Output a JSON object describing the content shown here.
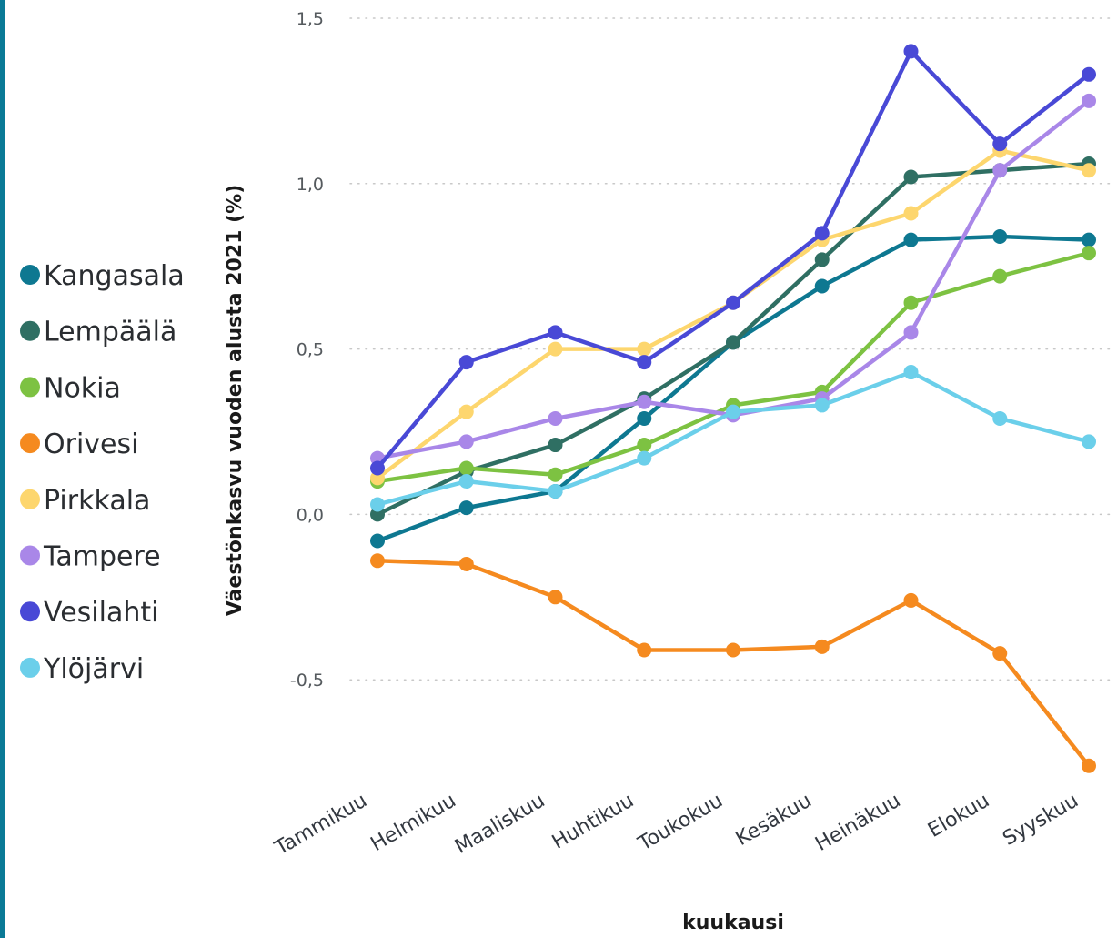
{
  "chart_data": {
    "type": "line",
    "title": "",
    "xlabel": "kuukausi",
    "ylabel": "Väestönkasvu vuoden alusta 2021 (%)",
    "categories": [
      "Tammikuu",
      "Helmikuu",
      "Maaliskuu",
      "Huhtikuu",
      "Toukokuu",
      "Kesäkuu",
      "Heinäkuu",
      "Elokuu",
      "Syyskuu"
    ],
    "ylim": [
      -0.85,
      1.55
    ],
    "yticks": [
      1.5,
      1.0,
      0.5,
      0.0,
      -0.5
    ],
    "ytick_labels": [
      "1,5",
      "1,0",
      "0,5",
      "0,0",
      "-0,5"
    ],
    "grid": "horizontal dotted",
    "legend_position": "left",
    "series": [
      {
        "name": "Kangasala",
        "color": "#0e7891",
        "values": [
          -0.08,
          0.02,
          0.07,
          0.29,
          0.52,
          0.69,
          0.83,
          0.84,
          0.83
        ]
      },
      {
        "name": "Lempäälä",
        "color": "#2f6f63",
        "values": [
          0.0,
          0.13,
          0.21,
          0.35,
          0.52,
          0.77,
          1.02,
          1.04,
          1.06
        ]
      },
      {
        "name": "Nokia",
        "color": "#7dc242",
        "values": [
          0.1,
          0.14,
          0.12,
          0.21,
          0.33,
          0.37,
          0.64,
          0.72,
          0.79
        ]
      },
      {
        "name": "Orivesi",
        "color": "#f58a1f",
        "values": [
          -0.14,
          -0.15,
          -0.25,
          -0.41,
          -0.41,
          -0.4,
          -0.26,
          -0.42,
          -0.76
        ]
      },
      {
        "name": "Pirkkala",
        "color": "#fdd66e",
        "values": [
          0.11,
          0.31,
          0.5,
          0.5,
          0.64,
          0.83,
          0.91,
          1.1,
          1.04
        ]
      },
      {
        "name": "Tampere",
        "color": "#a987e8",
        "values": [
          0.17,
          0.22,
          0.29,
          0.34,
          0.3,
          0.35,
          0.55,
          1.04,
          1.25
        ]
      },
      {
        "name": "Vesilahti",
        "color": "#4949d6",
        "values": [
          0.14,
          0.46,
          0.55,
          0.46,
          0.64,
          0.85,
          1.4,
          1.12,
          1.33
        ]
      },
      {
        "name": "Ylöjärvi",
        "color": "#6bcfea",
        "values": [
          0.03,
          0.1,
          0.07,
          0.17,
          0.31,
          0.33,
          0.43,
          0.29,
          0.22
        ]
      }
    ]
  }
}
